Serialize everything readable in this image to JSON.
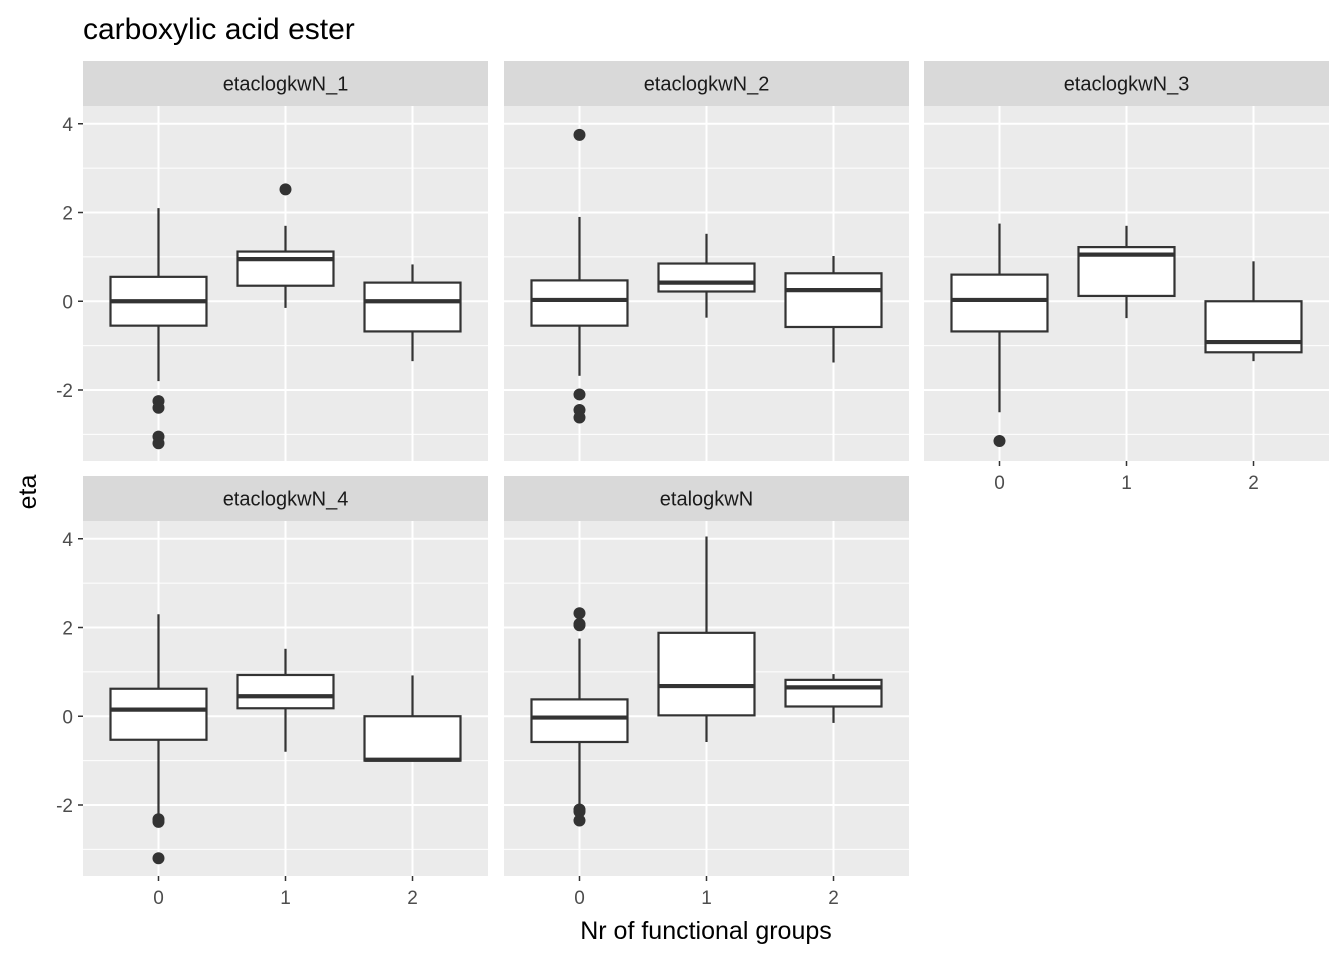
{
  "chart_data": {
    "type": "boxplot",
    "title": "carboxylic acid ester",
    "xlabel": "Nr of functional groups",
    "ylabel": "eta",
    "ylim": [
      -3.6,
      4.4
    ],
    "y_ticks": [
      -2,
      0,
      2,
      4
    ],
    "y_tick_labels": [
      "-2",
      "0",
      "2",
      "4"
    ],
    "categories": [
      "0",
      "1",
      "2"
    ],
    "grid": true,
    "facets": [
      {
        "name": "etaclogkwN_1",
        "boxes": [
          {
            "x": "0",
            "lower_whisker": -1.8,
            "q1": -0.55,
            "median": 0.0,
            "q3": 0.55,
            "upper_whisker": 2.1,
            "outliers": [
              -2.25,
              -2.4,
              -3.05,
              -3.2
            ]
          },
          {
            "x": "1",
            "lower_whisker": -0.15,
            "q1": 0.35,
            "median": 0.95,
            "q3": 1.12,
            "upper_whisker": 1.7,
            "outliers": [
              2.52
            ]
          },
          {
            "x": "2",
            "lower_whisker": -1.35,
            "q1": -0.68,
            "median": 0.0,
            "q3": 0.42,
            "upper_whisker": 0.83,
            "outliers": []
          }
        ]
      },
      {
        "name": "etaclogkwN_2",
        "boxes": [
          {
            "x": "0",
            "lower_whisker": -1.68,
            "q1": -0.55,
            "median": 0.03,
            "q3": 0.47,
            "upper_whisker": 1.9,
            "outliers": [
              -2.1,
              -2.45,
              -2.62,
              3.75
            ]
          },
          {
            "x": "1",
            "lower_whisker": -0.37,
            "q1": 0.22,
            "median": 0.42,
            "q3": 0.85,
            "upper_whisker": 1.52,
            "outliers": []
          },
          {
            "x": "2",
            "lower_whisker": -1.38,
            "q1": -0.58,
            "median": 0.25,
            "q3": 0.63,
            "upper_whisker": 1.02,
            "outliers": []
          }
        ]
      },
      {
        "name": "etaclogkwN_3",
        "boxes": [
          {
            "x": "0",
            "lower_whisker": -2.5,
            "q1": -0.68,
            "median": 0.03,
            "q3": 0.6,
            "upper_whisker": 1.75,
            "outliers": [
              -3.15
            ]
          },
          {
            "x": "1",
            "lower_whisker": -0.38,
            "q1": 0.12,
            "median": 1.05,
            "q3": 1.22,
            "upper_whisker": 1.7,
            "outliers": []
          },
          {
            "x": "2",
            "lower_whisker": -1.35,
            "q1": -1.15,
            "median": -0.92,
            "q3": 0.0,
            "upper_whisker": 0.9,
            "outliers": []
          }
        ]
      },
      {
        "name": "etaclogkwN_4",
        "boxes": [
          {
            "x": "0",
            "lower_whisker": -2.25,
            "q1": -0.53,
            "median": 0.15,
            "q3": 0.62,
            "upper_whisker": 2.3,
            "outliers": [
              -2.32,
              -2.38,
              -3.2
            ]
          },
          {
            "x": "1",
            "lower_whisker": -0.8,
            "q1": 0.18,
            "median": 0.45,
            "q3": 0.93,
            "upper_whisker": 1.52,
            "outliers": []
          },
          {
            "x": "2",
            "lower_whisker": -1.0,
            "q1": -1.0,
            "median": -0.98,
            "q3": 0.0,
            "upper_whisker": 0.92,
            "outliers": []
          }
        ]
      },
      {
        "name": "etalogkwN",
        "boxes": [
          {
            "x": "0",
            "lower_whisker": -2.05,
            "q1": -0.58,
            "median": -0.03,
            "q3": 0.38,
            "upper_whisker": 1.75,
            "outliers": [
              2.32,
              2.05,
              2.08,
              -2.1,
              -2.15,
              -2.35
            ]
          },
          {
            "x": "1",
            "lower_whisker": -0.58,
            "q1": 0.02,
            "median": 0.68,
            "q3": 1.88,
            "upper_whisker": 4.05,
            "outliers": []
          },
          {
            "x": "2",
            "lower_whisker": -0.15,
            "q1": 0.22,
            "median": 0.65,
            "q3": 0.82,
            "upper_whisker": 0.95,
            "outliers": []
          }
        ]
      }
    ]
  }
}
